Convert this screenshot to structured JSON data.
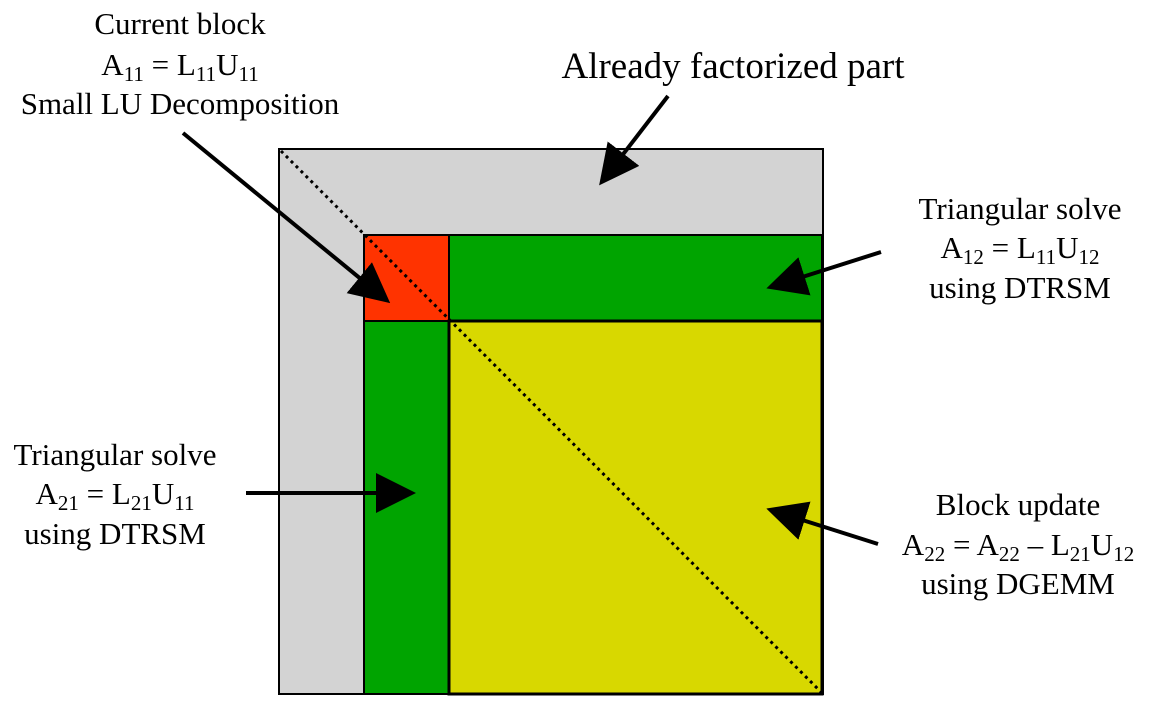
{
  "colors": {
    "factorized": "#d3d3d3",
    "current_block": "#ff3300",
    "panel": "#00a400",
    "update": "#d8d800",
    "stroke": "#000000"
  },
  "labels": {
    "current": {
      "title": "Current block",
      "eq_lhs": "A",
      "eq_lhs_sub": "11",
      "eq_mid": " = L",
      "eq_mid_sub": "11",
      "eq_rhs": "U",
      "eq_rhs_sub": "11",
      "line3": "Small LU Decomposition"
    },
    "factorized": {
      "title": "Already factorized part"
    },
    "top_right": {
      "title": "Triangular solve",
      "eq_lhs": "A",
      "eq_lhs_sub": "12",
      "eq_mid": " = L",
      "eq_mid_sub": "11",
      "eq_rhs": "U",
      "eq_rhs_sub": "12",
      "line3": "using DTRSM"
    },
    "left": {
      "title": "Triangular solve",
      "eq_lhs": "A",
      "eq_lhs_sub": "21",
      "eq_mid": " = L",
      "eq_mid_sub": "21",
      "eq_rhs": "U",
      "eq_rhs_sub": "11",
      "line3": "using DTRSM"
    },
    "bottom_right": {
      "title": "Block update",
      "eq_a": "A",
      "eq_a_sub": "22",
      "eq_b": " = A",
      "eq_b_sub": "22",
      "eq_c": " – L",
      "eq_c_sub": "21",
      "eq_d": "U",
      "eq_d_sub": "12",
      "line3": "using DGEMM"
    }
  }
}
